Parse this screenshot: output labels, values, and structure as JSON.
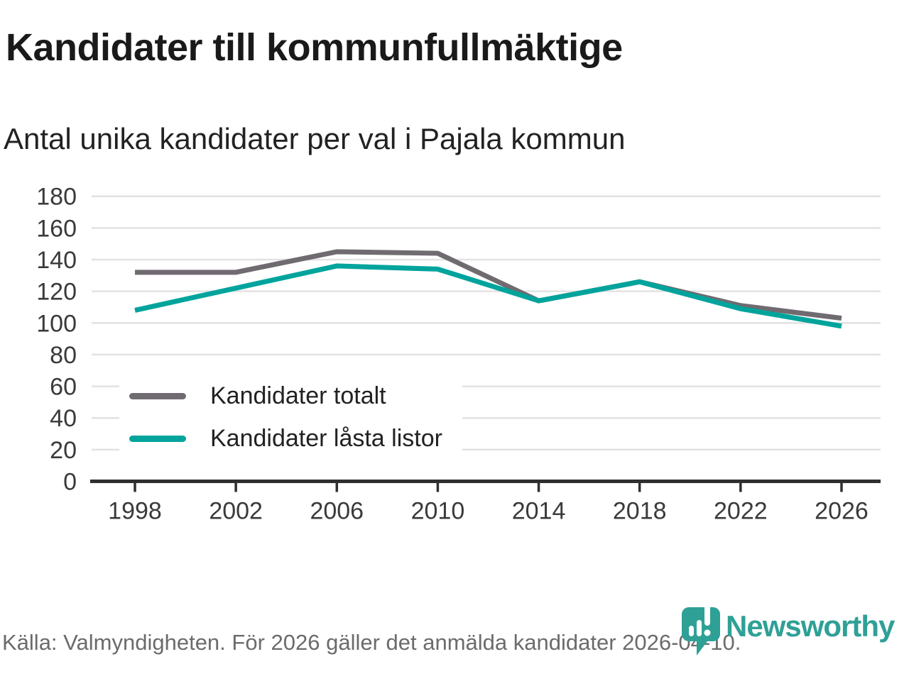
{
  "header": {
    "title": "Kandidater till kommunfullmäktige",
    "subtitle": "Antal unika kandidater per val i Pajala kommun"
  },
  "chart_data": {
    "type": "line",
    "categories": [
      "1998",
      "2002",
      "2006",
      "2010",
      "2014",
      "2018",
      "2022",
      "2026"
    ],
    "series": [
      {
        "name": "Kandidater totalt",
        "color": "#6F6B70",
        "values": [
          132,
          132,
          145,
          144,
          114,
          126,
          111,
          103
        ]
      },
      {
        "name": "Kandidater låsta listor",
        "color": "#00A49C",
        "values": [
          108,
          122,
          136,
          134,
          114,
          126,
          109,
          98
        ]
      }
    ],
    "title": "Kandidater till kommunfullmäktige",
    "subtitle": "Antal unika kandidater per val i Pajala kommun",
    "xlabel": "",
    "ylabel": "",
    "ylim": [
      0,
      180
    ],
    "ytick_step": 20,
    "yticks": [
      0,
      20,
      40,
      60,
      80,
      100,
      120,
      140,
      160,
      180
    ],
    "grid": true,
    "legend_position": "inside-bottom-left"
  },
  "footer": {
    "source": "Källa: Valmyndigheten. För 2026 gäller det anmälda kandidater 2026-04-10.",
    "brand": "Newsworthy"
  },
  "colors": {
    "gray_line": "#6F6B70",
    "teal_line": "#00A49C",
    "grid": "#E2E2E2",
    "axis": "#2F2F2F",
    "text_dark": "#1A1A1A",
    "text_axis": "#3A3A3A",
    "text_muted": "#6B6B6B",
    "logo_teal": "#2FA096"
  }
}
